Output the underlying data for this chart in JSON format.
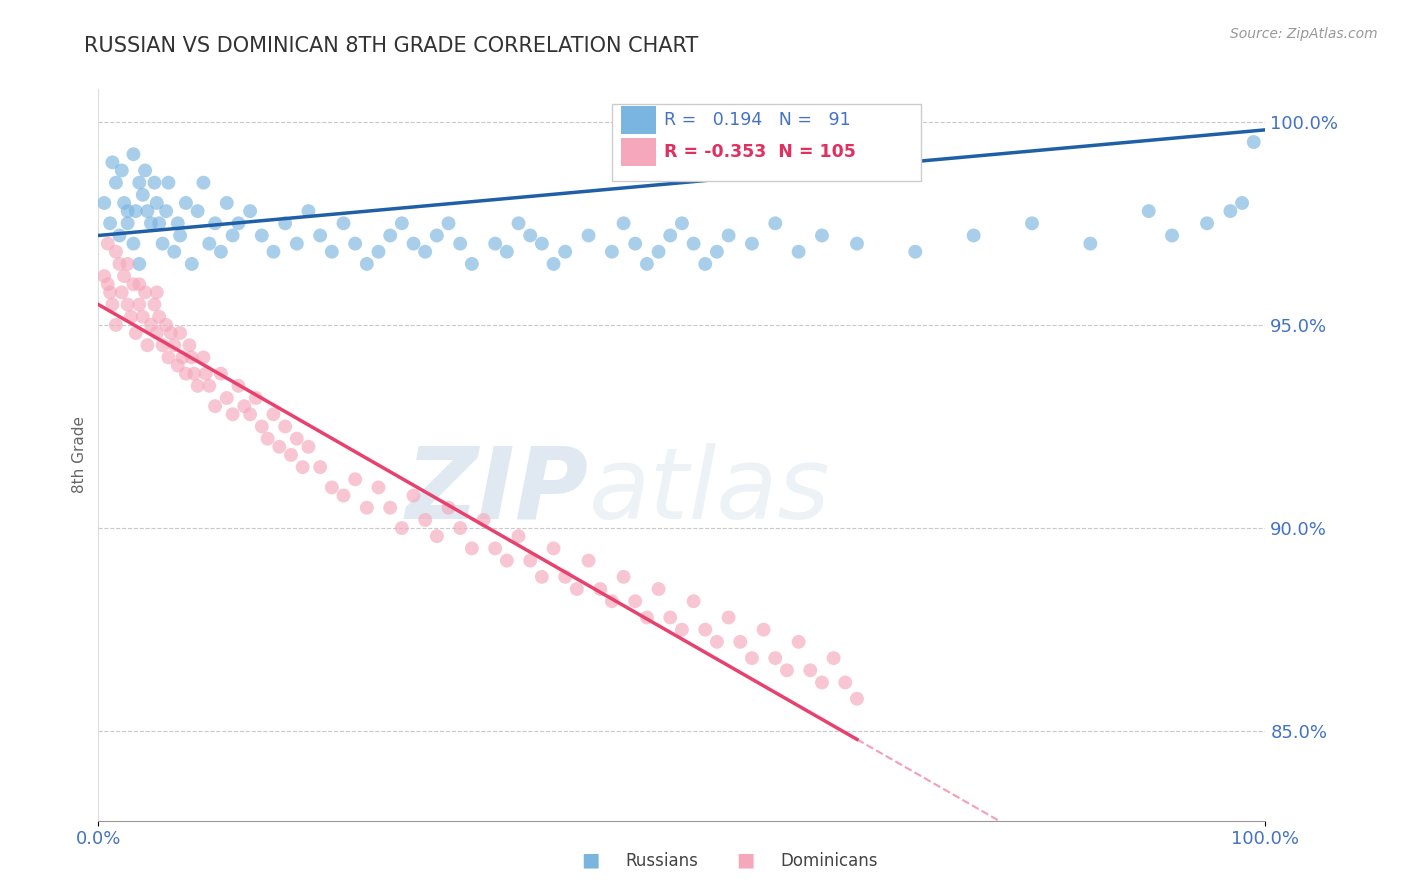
{
  "title": "RUSSIAN VS DOMINICAN 8TH GRADE CORRELATION CHART",
  "source": "Source: ZipAtlas.com",
  "ylabel": "8th Grade",
  "xmin": 0.0,
  "xmax": 1.0,
  "ymin": 0.828,
  "ymax": 1.008,
  "yticks": [
    0.85,
    0.9,
    0.95,
    1.0
  ],
  "ytick_labels": [
    "85.0%",
    "90.0%",
    "95.0%",
    "100.0%"
  ],
  "russian_color": "#7ab5e0",
  "dominican_color": "#f5a8bb",
  "russian_line_color": "#1f5fa6",
  "dominican_line_color": "#e8416e",
  "russian_R": 0.194,
  "russian_N": 91,
  "dominican_R": -0.353,
  "dominican_N": 105,
  "watermark_zip": "ZIP",
  "watermark_atlas": "atlas",
  "grid_color": "#c8c8d0",
  "tick_color": "#4472c4",
  "russian_x": [
    0.005,
    0.01,
    0.012,
    0.015,
    0.018,
    0.02,
    0.022,
    0.025,
    0.025,
    0.03,
    0.03,
    0.032,
    0.035,
    0.035,
    0.038,
    0.04,
    0.042,
    0.045,
    0.048,
    0.05,
    0.052,
    0.055,
    0.058,
    0.06,
    0.065,
    0.068,
    0.07,
    0.075,
    0.08,
    0.085,
    0.09,
    0.095,
    0.1,
    0.105,
    0.11,
    0.115,
    0.12,
    0.13,
    0.14,
    0.15,
    0.16,
    0.17,
    0.18,
    0.19,
    0.2,
    0.21,
    0.22,
    0.23,
    0.24,
    0.25,
    0.26,
    0.27,
    0.28,
    0.29,
    0.3,
    0.31,
    0.32,
    0.34,
    0.35,
    0.36,
    0.37,
    0.38,
    0.39,
    0.4,
    0.42,
    0.44,
    0.45,
    0.46,
    0.47,
    0.48,
    0.49,
    0.5,
    0.51,
    0.52,
    0.53,
    0.54,
    0.56,
    0.58,
    0.6,
    0.62,
    0.65,
    0.7,
    0.75,
    0.8,
    0.85,
    0.9,
    0.92,
    0.95,
    0.97,
    0.98,
    0.99
  ],
  "russian_y": [
    0.98,
    0.975,
    0.99,
    0.985,
    0.972,
    0.988,
    0.98,
    0.975,
    0.978,
    0.992,
    0.97,
    0.978,
    0.985,
    0.965,
    0.982,
    0.988,
    0.978,
    0.975,
    0.985,
    0.98,
    0.975,
    0.97,
    0.978,
    0.985,
    0.968,
    0.975,
    0.972,
    0.98,
    0.965,
    0.978,
    0.985,
    0.97,
    0.975,
    0.968,
    0.98,
    0.972,
    0.975,
    0.978,
    0.972,
    0.968,
    0.975,
    0.97,
    0.978,
    0.972,
    0.968,
    0.975,
    0.97,
    0.965,
    0.968,
    0.972,
    0.975,
    0.97,
    0.968,
    0.972,
    0.975,
    0.97,
    0.965,
    0.97,
    0.968,
    0.975,
    0.972,
    0.97,
    0.965,
    0.968,
    0.972,
    0.968,
    0.975,
    0.97,
    0.965,
    0.968,
    0.972,
    0.975,
    0.97,
    0.965,
    0.968,
    0.972,
    0.97,
    0.975,
    0.968,
    0.972,
    0.97,
    0.968,
    0.972,
    0.975,
    0.97,
    0.978,
    0.972,
    0.975,
    0.978,
    0.98,
    0.995
  ],
  "dominican_x": [
    0.005,
    0.008,
    0.01,
    0.012,
    0.015,
    0.018,
    0.02,
    0.022,
    0.025,
    0.028,
    0.03,
    0.032,
    0.035,
    0.038,
    0.04,
    0.042,
    0.045,
    0.048,
    0.05,
    0.052,
    0.055,
    0.058,
    0.06,
    0.062,
    0.065,
    0.068,
    0.07,
    0.072,
    0.075,
    0.078,
    0.08,
    0.082,
    0.085,
    0.09,
    0.092,
    0.095,
    0.1,
    0.105,
    0.11,
    0.115,
    0.12,
    0.125,
    0.13,
    0.135,
    0.14,
    0.145,
    0.15,
    0.155,
    0.16,
    0.165,
    0.17,
    0.175,
    0.18,
    0.19,
    0.2,
    0.21,
    0.22,
    0.23,
    0.24,
    0.25,
    0.26,
    0.27,
    0.28,
    0.29,
    0.3,
    0.31,
    0.32,
    0.33,
    0.34,
    0.35,
    0.36,
    0.37,
    0.38,
    0.39,
    0.4,
    0.41,
    0.42,
    0.43,
    0.44,
    0.45,
    0.46,
    0.47,
    0.48,
    0.49,
    0.5,
    0.51,
    0.52,
    0.53,
    0.54,
    0.55,
    0.56,
    0.57,
    0.58,
    0.59,
    0.6,
    0.61,
    0.62,
    0.63,
    0.64,
    0.65,
    0.008,
    0.015,
    0.025,
    0.035,
    0.05
  ],
  "dominican_y": [
    0.962,
    0.96,
    0.958,
    0.955,
    0.95,
    0.965,
    0.958,
    0.962,
    0.955,
    0.952,
    0.96,
    0.948,
    0.955,
    0.952,
    0.958,
    0.945,
    0.95,
    0.955,
    0.948,
    0.952,
    0.945,
    0.95,
    0.942,
    0.948,
    0.945,
    0.94,
    0.948,
    0.942,
    0.938,
    0.945,
    0.942,
    0.938,
    0.935,
    0.942,
    0.938,
    0.935,
    0.93,
    0.938,
    0.932,
    0.928,
    0.935,
    0.93,
    0.928,
    0.932,
    0.925,
    0.922,
    0.928,
    0.92,
    0.925,
    0.918,
    0.922,
    0.915,
    0.92,
    0.915,
    0.91,
    0.908,
    0.912,
    0.905,
    0.91,
    0.905,
    0.9,
    0.908,
    0.902,
    0.898,
    0.905,
    0.9,
    0.895,
    0.902,
    0.895,
    0.892,
    0.898,
    0.892,
    0.888,
    0.895,
    0.888,
    0.885,
    0.892,
    0.885,
    0.882,
    0.888,
    0.882,
    0.878,
    0.885,
    0.878,
    0.875,
    0.882,
    0.875,
    0.872,
    0.878,
    0.872,
    0.868,
    0.875,
    0.868,
    0.865,
    0.872,
    0.865,
    0.862,
    0.868,
    0.862,
    0.858,
    0.97,
    0.968,
    0.965,
    0.96,
    0.958
  ]
}
